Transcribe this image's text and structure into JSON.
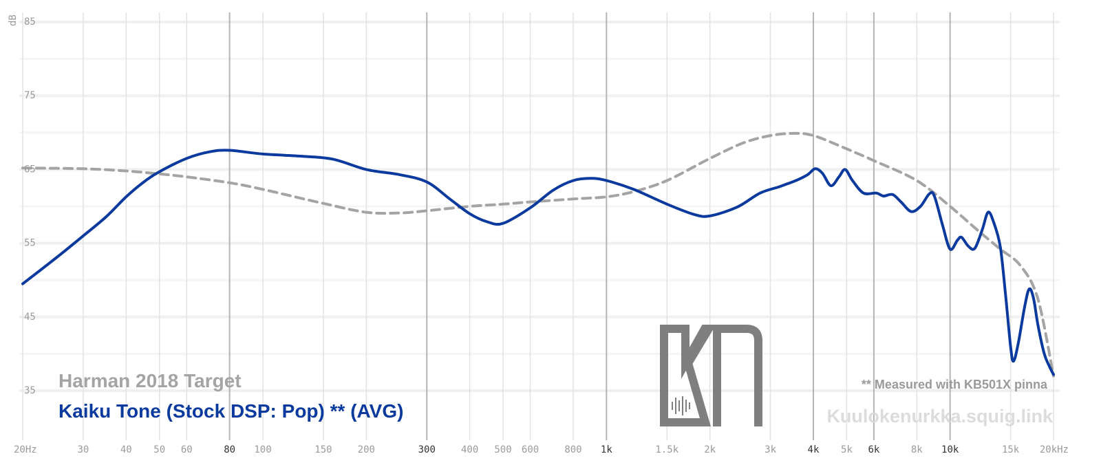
{
  "chart_data": {
    "type": "line",
    "y_axis": {
      "unit_label": "dB",
      "ticks": [
        {
          "value": 85,
          "label": "85"
        },
        {
          "value": 75,
          "label": "75"
        },
        {
          "value": 65,
          "label": "65"
        },
        {
          "value": 55,
          "label": "55"
        },
        {
          "value": 45,
          "label": "45"
        },
        {
          "value": 35,
          "label": "35"
        }
      ],
      "range": [
        32,
        88
      ]
    },
    "x_axis": {
      "scale": "log",
      "range": [
        20,
        20000
      ],
      "ticks": [
        {
          "value": 20,
          "label": "20Hz",
          "bold": false
        },
        {
          "value": 30,
          "label": "30",
          "bold": false
        },
        {
          "value": 40,
          "label": "40",
          "bold": false
        },
        {
          "value": 50,
          "label": "50",
          "bold": false
        },
        {
          "value": 60,
          "label": "60",
          "bold": false
        },
        {
          "value": 80,
          "label": "80",
          "bold": true
        },
        {
          "value": 100,
          "label": "100",
          "bold": false
        },
        {
          "value": 150,
          "label": "150",
          "bold": false
        },
        {
          "value": 200,
          "label": "200",
          "bold": false
        },
        {
          "value": 300,
          "label": "300",
          "bold": true
        },
        {
          "value": 400,
          "label": "400",
          "bold": false
        },
        {
          "value": 500,
          "label": "500",
          "bold": false
        },
        {
          "value": 600,
          "label": "600",
          "bold": false
        },
        {
          "value": 800,
          "label": "800",
          "bold": false
        },
        {
          "value": 1000,
          "label": "1k",
          "bold": true
        },
        {
          "value": 1500,
          "label": "1.5k",
          "bold": false
        },
        {
          "value": 2000,
          "label": "2k",
          "bold": false
        },
        {
          "value": 3000,
          "label": "3k",
          "bold": false
        },
        {
          "value": 4000,
          "label": "4k",
          "bold": true
        },
        {
          "value": 5000,
          "label": "5k",
          "bold": false
        },
        {
          "value": 6000,
          "label": "6k",
          "bold": true
        },
        {
          "value": 8000,
          "label": "8k",
          "bold": false
        },
        {
          "value": 10000,
          "label": "10k",
          "bold": true
        },
        {
          "value": 15000,
          "label": "15k",
          "bold": false
        },
        {
          "value": 20000,
          "label": "20kHz",
          "bold": false
        }
      ]
    },
    "grid": true,
    "legend_position": "bottom-left",
    "series": [
      {
        "name": "Harman 2018 Target",
        "color": "#a4a4a4",
        "dash": "dashed",
        "points": [
          [
            20,
            65.2
          ],
          [
            30,
            65.1
          ],
          [
            40,
            64.8
          ],
          [
            50,
            64.4
          ],
          [
            60,
            64.0
          ],
          [
            80,
            63.2
          ],
          [
            100,
            62.3
          ],
          [
            150,
            60.4
          ],
          [
            200,
            59.2
          ],
          [
            250,
            59.1
          ],
          [
            300,
            59.4
          ],
          [
            400,
            60.0
          ],
          [
            500,
            60.3
          ],
          [
            600,
            60.6
          ],
          [
            800,
            61.0
          ],
          [
            1000,
            61.3
          ],
          [
            1200,
            62.0
          ],
          [
            1500,
            63.5
          ],
          [
            2000,
            66.5
          ],
          [
            2500,
            68.6
          ],
          [
            3000,
            69.6
          ],
          [
            3500,
            69.9
          ],
          [
            4000,
            69.6
          ],
          [
            5000,
            67.8
          ],
          [
            6000,
            66.2
          ],
          [
            8000,
            63.5
          ],
          [
            10000,
            60.0
          ],
          [
            12000,
            56.8
          ],
          [
            14000,
            54.2
          ],
          [
            16000,
            52.0
          ],
          [
            18000,
            47.5
          ],
          [
            20000,
            37.0
          ]
        ]
      },
      {
        "name": "Kaiku Tone (Stock DSP: Pop) ** (AVG)",
        "color": "#0a3a9e",
        "dash": "solid",
        "points": [
          [
            20,
            49.5
          ],
          [
            25,
            53.0
          ],
          [
            30,
            56.0
          ],
          [
            35,
            58.6
          ],
          [
            40,
            61.3
          ],
          [
            45,
            63.3
          ],
          [
            50,
            64.7
          ],
          [
            60,
            66.5
          ],
          [
            70,
            67.4
          ],
          [
            80,
            67.6
          ],
          [
            100,
            67.1
          ],
          [
            130,
            66.8
          ],
          [
            160,
            66.4
          ],
          [
            200,
            65.0
          ],
          [
            250,
            64.3
          ],
          [
            300,
            63.3
          ],
          [
            350,
            61.0
          ],
          [
            400,
            59.0
          ],
          [
            450,
            57.9
          ],
          [
            500,
            57.7
          ],
          [
            600,
            59.8
          ],
          [
            700,
            62.2
          ],
          [
            800,
            63.5
          ],
          [
            900,
            63.8
          ],
          [
            1000,
            63.5
          ],
          [
            1200,
            62.3
          ],
          [
            1500,
            60.3
          ],
          [
            1800,
            58.9
          ],
          [
            2000,
            58.7
          ],
          [
            2400,
            59.9
          ],
          [
            2800,
            61.8
          ],
          [
            3200,
            62.7
          ],
          [
            3600,
            63.6
          ],
          [
            3850,
            64.3
          ],
          [
            4050,
            65.1
          ],
          [
            4250,
            64.5
          ],
          [
            4500,
            62.8
          ],
          [
            4750,
            64.0
          ],
          [
            4950,
            65.0
          ],
          [
            5200,
            63.5
          ],
          [
            5600,
            61.8
          ],
          [
            6100,
            61.8
          ],
          [
            6400,
            61.4
          ],
          [
            6800,
            61.6
          ],
          [
            7200,
            60.6
          ],
          [
            7700,
            59.3
          ],
          [
            8200,
            60.0
          ],
          [
            8700,
            61.7
          ],
          [
            9000,
            61.4
          ],
          [
            9500,
            57.5
          ],
          [
            10000,
            54.2
          ],
          [
            10500,
            55.4
          ],
          [
            10800,
            55.8
          ],
          [
            11300,
            54.6
          ],
          [
            11800,
            54.3
          ],
          [
            12400,
            56.8
          ],
          [
            12900,
            59.2
          ],
          [
            13400,
            57.8
          ],
          [
            14000,
            54.5
          ],
          [
            14500,
            48.0
          ],
          [
            15000,
            41.0
          ],
          [
            15300,
            39.0
          ],
          [
            15800,
            41.5
          ],
          [
            16500,
            46.5
          ],
          [
            17000,
            48.8
          ],
          [
            17500,
            47.5
          ],
          [
            18000,
            44.0
          ],
          [
            18800,
            40.0
          ],
          [
            19500,
            38.2
          ],
          [
            20000,
            37.2
          ]
        ]
      }
    ],
    "annotations": {
      "note": "** Measured with KB501X pinna",
      "site": "Kuulokenurkka.squig.link"
    }
  }
}
